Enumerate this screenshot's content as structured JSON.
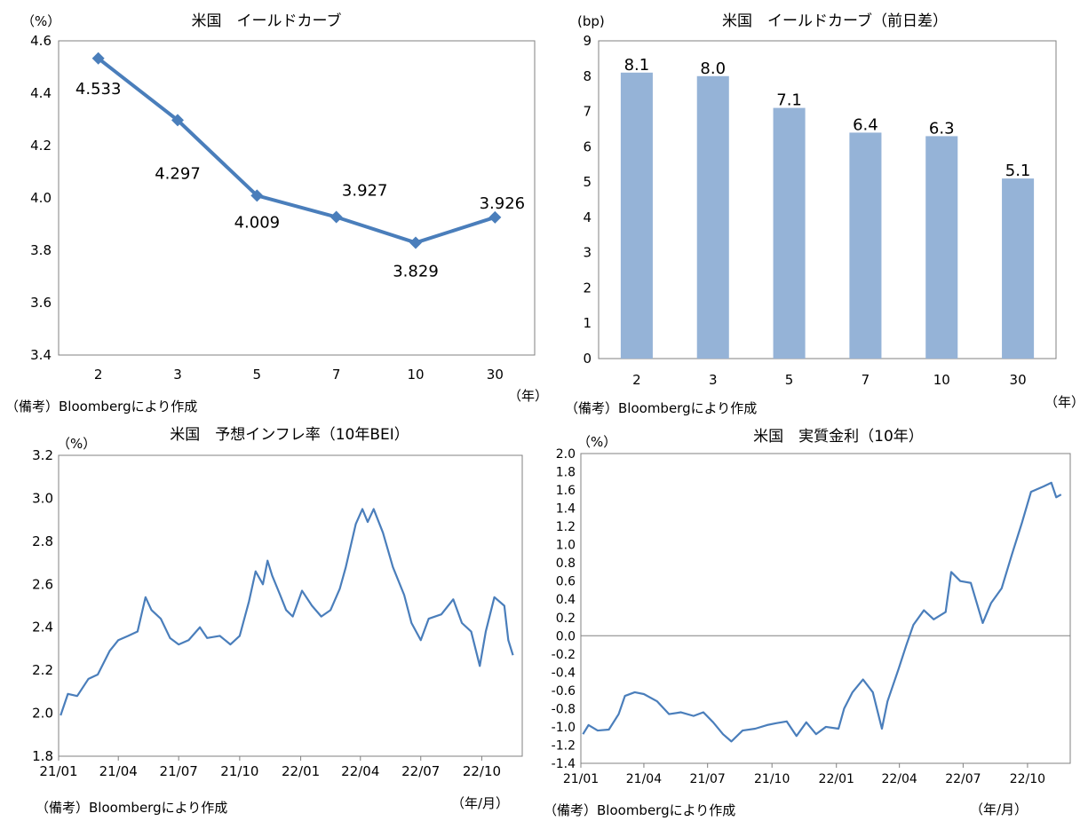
{
  "panels": [
    {
      "id": "yield-curve",
      "title": "米国　イールドカーブ",
      "unit_label": "（%）",
      "x_unit_label": "（年）",
      "source_note": "（備考）Bloombergにより作成",
      "line_color": "#4a7ebb"
    },
    {
      "id": "yield-curve-change",
      "title": "米国　イールドカーブ（前日差）",
      "unit_label": "(bp)",
      "x_unit_label": "（年）",
      "source_note": "（備考）Bloombergにより作成",
      "bar_color": "#95b3d7"
    },
    {
      "id": "breakeven-inflation",
      "title": "米国　予想インフレ率（10年BEI）",
      "unit_label": "（%）",
      "x_unit_label": "（年/月）",
      "source_note": "（備考）Bloombergにより作成",
      "line_color": "#4a7ebb"
    },
    {
      "id": "real-rate",
      "title": "米国　実質金利（10年）",
      "unit_label": "（%）",
      "x_unit_label": "（年/月）",
      "source_note": "（備考）Bloombergにより作成",
      "line_color": "#4a7ebb"
    }
  ],
  "chart_data": [
    {
      "type": "line",
      "title": "米国　イールドカーブ",
      "ylabel": "（%）",
      "xlabel": "（年）",
      "categories": [
        "2",
        "3",
        "5",
        "7",
        "10",
        "30"
      ],
      "series": [
        {
          "values": [
            4.533,
            4.297,
            4.009,
            3.927,
            3.829,
            3.926
          ]
        }
      ],
      "data_labels": [
        "4.533",
        "4.297",
        "4.009",
        "3.927",
        "3.829",
        "3.926"
      ],
      "ylim": [
        3.4,
        4.6
      ],
      "yticks": [
        "3.4",
        "3.6",
        "3.8",
        "4.0",
        "4.2",
        "4.4",
        "4.6"
      ],
      "marker": "diamond",
      "grid": false
    },
    {
      "type": "bar",
      "title": "米国　イールドカーブ（前日差）",
      "ylabel": "(bp)",
      "xlabel": "（年）",
      "categories": [
        "2",
        "3",
        "5",
        "7",
        "10",
        "30"
      ],
      "values": [
        8.1,
        8.0,
        7.1,
        6.4,
        6.3,
        5.1
      ],
      "data_labels": [
        "8.1",
        "8.0",
        "7.1",
        "6.4",
        "6.3",
        "5.1"
      ],
      "ylim": [
        0,
        9
      ],
      "yticks": [
        "0",
        "1",
        "2",
        "3",
        "4",
        "5",
        "6",
        "7",
        "8",
        "9"
      ],
      "grid": false
    },
    {
      "type": "line",
      "title": "米国　予想インフレ率（10年BEI）",
      "ylabel": "（%）",
      "xlabel": "（年/月）",
      "x_range": [
        "2021-01-01",
        "2022-12-01"
      ],
      "xticks": [
        {
          "date": "2021-01-01",
          "label": "21/01"
        },
        {
          "date": "2021-04-01",
          "label": "21/04"
        },
        {
          "date": "2021-07-01",
          "label": "21/07"
        },
        {
          "date": "2021-10-01",
          "label": "21/10"
        },
        {
          "date": "2022-01-01",
          "label": "22/01"
        },
        {
          "date": "2022-04-01",
          "label": "22/04"
        },
        {
          "date": "2022-07-01",
          "label": "22/07"
        },
        {
          "date": "2022-10-01",
          "label": "22/10"
        }
      ],
      "ylim": [
        1.8,
        3.2
      ],
      "yticks": [
        "1.8",
        "2.0",
        "2.2",
        "2.4",
        "2.6",
        "2.8",
        "3.0",
        "3.2"
      ],
      "series": [
        {
          "points": [
            [
              "2021-01-04",
              1.99
            ],
            [
              "2021-01-15",
              2.09
            ],
            [
              "2021-01-29",
              2.08
            ],
            [
              "2021-02-15",
              2.16
            ],
            [
              "2021-03-01",
              2.18
            ],
            [
              "2021-03-19",
              2.29
            ],
            [
              "2021-04-01",
              2.34
            ],
            [
              "2021-04-16",
              2.36
            ],
            [
              "2021-04-30",
              2.38
            ],
            [
              "2021-05-12",
              2.54
            ],
            [
              "2021-05-21",
              2.48
            ],
            [
              "2021-06-04",
              2.44
            ],
            [
              "2021-06-18",
              2.35
            ],
            [
              "2021-07-01",
              2.32
            ],
            [
              "2021-07-16",
              2.34
            ],
            [
              "2021-08-02",
              2.4
            ],
            [
              "2021-08-13",
              2.35
            ],
            [
              "2021-09-01",
              2.36
            ],
            [
              "2021-09-17",
              2.32
            ],
            [
              "2021-10-01",
              2.36
            ],
            [
              "2021-10-15",
              2.52
            ],
            [
              "2021-10-25",
              2.66
            ],
            [
              "2021-11-05",
              2.6
            ],
            [
              "2021-11-12",
              2.71
            ],
            [
              "2021-11-19",
              2.64
            ],
            [
              "2021-12-01",
              2.55
            ],
            [
              "2021-12-10",
              2.48
            ],
            [
              "2021-12-20",
              2.45
            ],
            [
              "2022-01-03",
              2.57
            ],
            [
              "2022-01-18",
              2.5
            ],
            [
              "2022-02-01",
              2.45
            ],
            [
              "2022-02-15",
              2.48
            ],
            [
              "2022-03-01",
              2.58
            ],
            [
              "2022-03-10",
              2.68
            ],
            [
              "2022-03-25",
              2.88
            ],
            [
              "2022-04-04",
              2.95
            ],
            [
              "2022-04-12",
              2.89
            ],
            [
              "2022-04-21",
              2.95
            ],
            [
              "2022-05-05",
              2.84
            ],
            [
              "2022-05-20",
              2.68
            ],
            [
              "2022-06-06",
              2.55
            ],
            [
              "2022-06-17",
              2.42
            ],
            [
              "2022-07-01",
              2.34
            ],
            [
              "2022-07-13",
              2.44
            ],
            [
              "2022-08-01",
              2.46
            ],
            [
              "2022-08-19",
              2.53
            ],
            [
              "2022-09-01",
              2.42
            ],
            [
              "2022-09-15",
              2.38
            ],
            [
              "2022-09-28",
              2.22
            ],
            [
              "2022-10-07",
              2.38
            ],
            [
              "2022-10-20",
              2.54
            ],
            [
              "2022-11-04",
              2.5
            ],
            [
              "2022-11-10",
              2.34
            ],
            [
              "2022-11-17",
              2.27
            ]
          ]
        }
      ],
      "grid": false
    },
    {
      "type": "line",
      "title": "米国　実質金利（10年）",
      "ylabel": "（%）",
      "xlabel": "（年/月）",
      "x_range": [
        "2021-01-01",
        "2022-12-01"
      ],
      "xticks": [
        {
          "date": "2021-01-01",
          "label": "21/01"
        },
        {
          "date": "2021-04-01",
          "label": "21/04"
        },
        {
          "date": "2021-07-01",
          "label": "21/07"
        },
        {
          "date": "2021-10-01",
          "label": "21/10"
        },
        {
          "date": "2022-01-01",
          "label": "22/01"
        },
        {
          "date": "2022-04-01",
          "label": "22/04"
        },
        {
          "date": "2022-07-01",
          "label": "22/07"
        },
        {
          "date": "2022-10-01",
          "label": "22/10"
        }
      ],
      "ylim": [
        -1.4,
        2.0
      ],
      "yticks": [
        "-1.4",
        "-1.2",
        "-1.0",
        "-0.8",
        "-0.6",
        "-0.4",
        "-0.2",
        "0.0",
        "0.2",
        "0.4",
        "0.6",
        "0.8",
        "1.0",
        "1.2",
        "1.4",
        "1.6",
        "1.8",
        "2.0"
      ],
      "reference_line": 0.0,
      "series": [
        {
          "points": [
            [
              "2021-01-04",
              -1.08
            ],
            [
              "2021-01-12",
              -0.98
            ],
            [
              "2021-01-25",
              -1.04
            ],
            [
              "2021-02-10",
              -1.03
            ],
            [
              "2021-02-24",
              -0.86
            ],
            [
              "2021-03-05",
              -0.66
            ],
            [
              "2021-03-19",
              -0.62
            ],
            [
              "2021-04-01",
              -0.64
            ],
            [
              "2021-04-20",
              -0.72
            ],
            [
              "2021-05-07",
              -0.86
            ],
            [
              "2021-05-24",
              -0.84
            ],
            [
              "2021-06-11",
              -0.88
            ],
            [
              "2021-06-25",
              -0.84
            ],
            [
              "2021-07-09",
              -0.95
            ],
            [
              "2021-07-23",
              -1.08
            ],
            [
              "2021-08-04",
              -1.16
            ],
            [
              "2021-08-20",
              -1.04
            ],
            [
              "2021-09-07",
              -1.02
            ],
            [
              "2021-09-24",
              -0.98
            ],
            [
              "2021-10-07",
              -0.96
            ],
            [
              "2021-10-22",
              -0.94
            ],
            [
              "2021-11-05",
              -1.1
            ],
            [
              "2021-11-19",
              -0.95
            ],
            [
              "2021-12-03",
              -1.08
            ],
            [
              "2021-12-17",
              -1.0
            ],
            [
              "2022-01-04",
              -1.02
            ],
            [
              "2022-01-12",
              -0.8
            ],
            [
              "2022-01-24",
              -0.62
            ],
            [
              "2022-02-08",
              -0.48
            ],
            [
              "2022-02-22",
              -0.62
            ],
            [
              "2022-03-07",
              -1.02
            ],
            [
              "2022-03-15",
              -0.72
            ],
            [
              "2022-03-31",
              -0.36
            ],
            [
              "2022-04-11",
              -0.1
            ],
            [
              "2022-04-21",
              0.12
            ],
            [
              "2022-05-06",
              0.28
            ],
            [
              "2022-05-20",
              0.18
            ],
            [
              "2022-06-06",
              0.26
            ],
            [
              "2022-06-14",
              0.7
            ],
            [
              "2022-06-27",
              0.6
            ],
            [
              "2022-07-12",
              0.58
            ],
            [
              "2022-07-29",
              0.14
            ],
            [
              "2022-08-10",
              0.36
            ],
            [
              "2022-08-25",
              0.52
            ],
            [
              "2022-09-09",
              0.9
            ],
            [
              "2022-09-23",
              1.24
            ],
            [
              "2022-10-06",
              1.58
            ],
            [
              "2022-10-24",
              1.64
            ],
            [
              "2022-11-04",
              1.68
            ],
            [
              "2022-11-11",
              1.52
            ],
            [
              "2022-11-18",
              1.55
            ]
          ]
        }
      ],
      "grid": false
    }
  ]
}
